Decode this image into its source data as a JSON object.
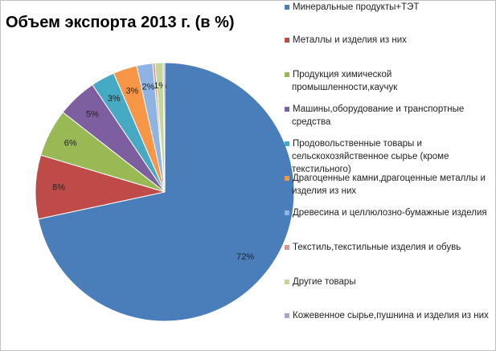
{
  "chart_data": {
    "type": "pie",
    "title": "Объем экспорта 2013 г. (в %)",
    "categories": [
      "Минеральные продукты+ТЭТ",
      "Металлы и изделия из них",
      "Продукция химической промышленности,каучук",
      "Машины,оборудование и транспортные средства",
      "Продовольственные товары и сельскохозяйственное сырье (кроме текстильного)",
      "Драгоценные камни,драгоценные металлы и изделия из них",
      "Древесина и целлюлозно-бумажные изделия",
      "Текстиль,текстильные изделия и обувь",
      "Другие товары",
      "Кожевенное сырье,пушнина и изделия из них"
    ],
    "values": [
      72,
      8,
      6,
      5,
      3,
      3,
      2,
      0.3,
      1,
      0.2
    ],
    "value_labels": [
      "72%",
      "8%",
      "6%",
      "5%",
      "3%",
      "3%",
      "2%",
      null,
      "1%",
      null
    ],
    "colors": [
      "#4a7ebb",
      "#be4b48",
      "#98b954",
      "#7d5fa0",
      "#46aac5",
      "#f79646",
      "#8eb4e3",
      "#d99694",
      "#c3d69b",
      "#b3a2c7"
    ],
    "legend": "right"
  }
}
